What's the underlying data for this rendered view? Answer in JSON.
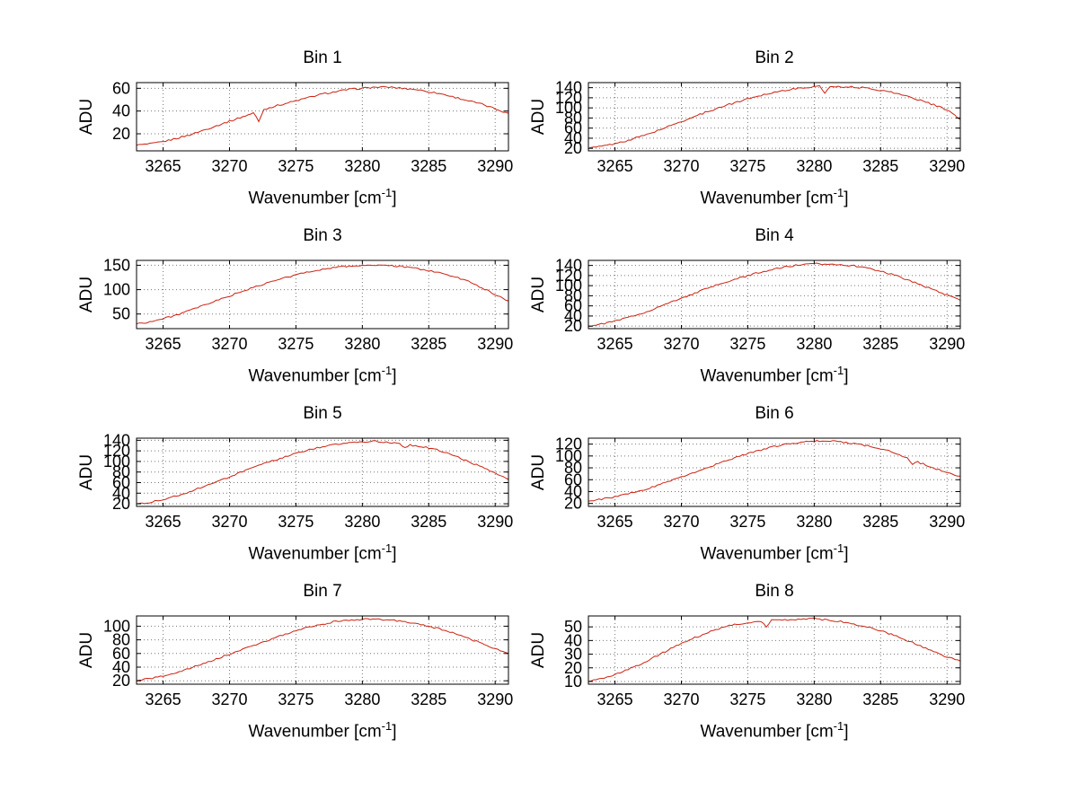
{
  "figure": {
    "background": "#ffffff",
    "line_color": "#cc2211",
    "grid_color": "#777777",
    "axis_color": "#000000"
  },
  "shared_labels": {
    "ylabel": "ADU",
    "xlabel_prefix": "Wavenumber [cm",
    "xlabel_sup": "-1",
    "xlabel_suffix": "]"
  },
  "chart_data": [
    {
      "type": "line",
      "title": "Bin 1",
      "xlabel": "Wavenumber [cm^-1]",
      "ylabel": "ADU",
      "xlim": [
        3263,
        3291
      ],
      "ylim": [
        5,
        65
      ],
      "x_ticks": [
        3265,
        3270,
        3275,
        3280,
        3285,
        3290
      ],
      "y_ticks": [
        20,
        40,
        60
      ],
      "x_start": 3263,
      "x_step": 1,
      "values": [
        10,
        11,
        13,
        16,
        19,
        23,
        27,
        31,
        35,
        39,
        43,
        46,
        49,
        52,
        55,
        57,
        59,
        60,
        61,
        61,
        60,
        59,
        57,
        55,
        52,
        49,
        46,
        42,
        38
      ],
      "spikes": [
        {
          "x": 3272.2,
          "depth": 9
        }
      ]
    },
    {
      "type": "line",
      "title": "Bin 2",
      "xlabel": "Wavenumber [cm^-1]",
      "ylabel": "ADU",
      "xlim": [
        3263,
        3291
      ],
      "ylim": [
        15,
        150
      ],
      "x_ticks": [
        3265,
        3270,
        3275,
        3280,
        3285,
        3290
      ],
      "y_ticks": [
        20,
        40,
        60,
        80,
        100,
        120,
        140
      ],
      "x_start": 3263,
      "x_step": 1,
      "values": [
        20,
        24,
        29,
        36,
        44,
        53,
        63,
        73,
        83,
        93,
        102,
        110,
        118,
        125,
        131,
        136,
        139,
        142,
        143,
        142,
        141,
        139,
        135,
        130,
        123,
        115,
        106,
        96,
        77
      ],
      "spikes": [
        {
          "x": 3280.8,
          "depth": 14
        }
      ]
    },
    {
      "type": "line",
      "title": "Bin 3",
      "xlabel": "Wavenumber [cm^-1]",
      "ylabel": "ADU",
      "xlim": [
        3263,
        3291
      ],
      "ylim": [
        20,
        160
      ],
      "x_ticks": [
        3265,
        3270,
        3275,
        3280,
        3285,
        3290
      ],
      "y_ticks": [
        50,
        100,
        150
      ],
      "x_start": 3263,
      "x_step": 1,
      "values": [
        30,
        34,
        40,
        48,
        57,
        67,
        77,
        87,
        97,
        106,
        115,
        123,
        130,
        137,
        142,
        146,
        148,
        150,
        150,
        149,
        147,
        144,
        139,
        133,
        126,
        117,
        104,
        90,
        77
      ],
      "spikes": []
    },
    {
      "type": "line",
      "title": "Bin 4",
      "xlabel": "Wavenumber [cm^-1]",
      "ylabel": "ADU",
      "xlim": [
        3263,
        3291
      ],
      "ylim": [
        15,
        150
      ],
      "x_ticks": [
        3265,
        3270,
        3275,
        3280,
        3285,
        3290
      ],
      "y_ticks": [
        20,
        40,
        60,
        80,
        100,
        120,
        140
      ],
      "x_start": 3263,
      "x_step": 1,
      "values": [
        20,
        24,
        30,
        37,
        45,
        55,
        65,
        75,
        85,
        95,
        104,
        112,
        120,
        127,
        133,
        138,
        141,
        143,
        143,
        142,
        139,
        135,
        129,
        121,
        112,
        102,
        92,
        81,
        71
      ],
      "spikes": []
    },
    {
      "type": "line",
      "title": "Bin 5",
      "xlabel": "Wavenumber [cm^-1]",
      "ylabel": "ADU",
      "xlim": [
        3263,
        3291
      ],
      "ylim": [
        15,
        144
      ],
      "x_ticks": [
        3265,
        3270,
        3275,
        3280,
        3285,
        3290
      ],
      "y_ticks": [
        20,
        40,
        60,
        80,
        100,
        120,
        140
      ],
      "x_start": 3263,
      "x_step": 1,
      "values": [
        20,
        23,
        28,
        35,
        43,
        52,
        61,
        71,
        81,
        90,
        99,
        107,
        115,
        122,
        128,
        132,
        135,
        137,
        138,
        136,
        132,
        130,
        126,
        119,
        110,
        100,
        89,
        77,
        66
      ],
      "spikes": [
        {
          "x": 3283.2,
          "depth": 5
        }
      ]
    },
    {
      "type": "line",
      "title": "Bin 6",
      "xlabel": "Wavenumber [cm^-1]",
      "ylabel": "ADU",
      "xlim": [
        3263,
        3291
      ],
      "ylim": [
        15,
        130
      ],
      "x_ticks": [
        3265,
        3270,
        3275,
        3280,
        3285,
        3290
      ],
      "y_ticks": [
        20,
        40,
        60,
        80,
        100,
        120
      ],
      "x_start": 3263,
      "x_step": 1,
      "values": [
        24,
        27,
        31,
        36,
        42,
        49,
        57,
        65,
        73,
        81,
        89,
        97,
        104,
        110,
        116,
        120,
        123,
        125,
        125,
        124,
        121,
        117,
        112,
        106,
        97,
        88,
        80,
        72,
        66
      ],
      "spikes": [
        {
          "x": 3287.3,
          "depth": 7
        }
      ]
    },
    {
      "type": "line",
      "title": "Bin 7",
      "xlabel": "Wavenumber [cm^-1]",
      "ylabel": "ADU",
      "xlim": [
        3263,
        3291
      ],
      "ylim": [
        15,
        115
      ],
      "x_ticks": [
        3265,
        3270,
        3275,
        3280,
        3285,
        3290
      ],
      "y_ticks": [
        20,
        40,
        60,
        80,
        100
      ],
      "x_start": 3263,
      "x_step": 1,
      "values": [
        20,
        23,
        27,
        32,
        38,
        45,
        52,
        59,
        66,
        73,
        80,
        87,
        93,
        99,
        103,
        107,
        109,
        110,
        110,
        109,
        107,
        104,
        100,
        95,
        89,
        82,
        75,
        67,
        60
      ],
      "spikes": []
    },
    {
      "type": "line",
      "title": "Bin 8",
      "xlabel": "Wavenumber [cm^-1]",
      "ylabel": "ADU",
      "xlim": [
        3263,
        3291
      ],
      "ylim": [
        8,
        58
      ],
      "x_ticks": [
        3265,
        3270,
        3275,
        3280,
        3285,
        3290
      ],
      "y_ticks": [
        10,
        20,
        30,
        40,
        50
      ],
      "x_start": 3263,
      "x_step": 1,
      "values": [
        10,
        12,
        15,
        19,
        23,
        28,
        33,
        38,
        42,
        46,
        49,
        52,
        53,
        54,
        55,
        55,
        56,
        56,
        55,
        54,
        52,
        50,
        47,
        44,
        40,
        36,
        32,
        28,
        25
      ],
      "spikes": [
        {
          "x": 3276.3,
          "depth": 4
        }
      ]
    }
  ]
}
